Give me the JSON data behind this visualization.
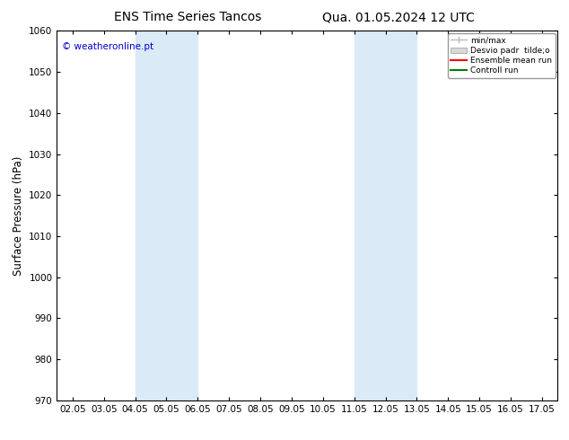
{
  "title": "ENS Time Series Tancos",
  "title2": "Qua. 01.05.2024 12 UTC",
  "ylabel": "Surface Pressure (hPa)",
  "ylim": [
    970,
    1060
  ],
  "yticks": [
    970,
    980,
    990,
    1000,
    1010,
    1020,
    1030,
    1040,
    1050,
    1060
  ],
  "xtick_labels": [
    "02.05",
    "03.05",
    "04.05",
    "05.05",
    "06.05",
    "07.05",
    "08.05",
    "09.05",
    "10.05",
    "11.05",
    "12.05",
    "13.05",
    "14.05",
    "15.05",
    "16.05",
    "17.05"
  ],
  "xtick_positions": [
    0,
    1,
    2,
    3,
    4,
    5,
    6,
    7,
    8,
    9,
    10,
    11,
    12,
    13,
    14,
    15
  ],
  "xlim": [
    -0.5,
    15.5
  ],
  "shaded_regions": [
    {
      "xmin": 2.0,
      "xmax": 4.0,
      "color": "#daeaf7"
    },
    {
      "xmin": 9.0,
      "xmax": 11.0,
      "color": "#daeaf7"
    }
  ],
  "watermark": "© weatheronline.pt",
  "watermark_color": "#0000cc",
  "legend_labels": [
    "min/max",
    "Desvio padr  tilde;o",
    "Ensemble mean run",
    "Controll run"
  ],
  "legend_colors": [
    "#aaaaaa",
    "#cccccc",
    "#ff0000",
    "#008000"
  ],
  "bg_color": "#ffffff",
  "plot_bg_color": "#ffffff",
  "border_color": "#000000",
  "title_fontsize": 10,
  "axis_label_fontsize": 8.5,
  "tick_fontsize": 7.5
}
